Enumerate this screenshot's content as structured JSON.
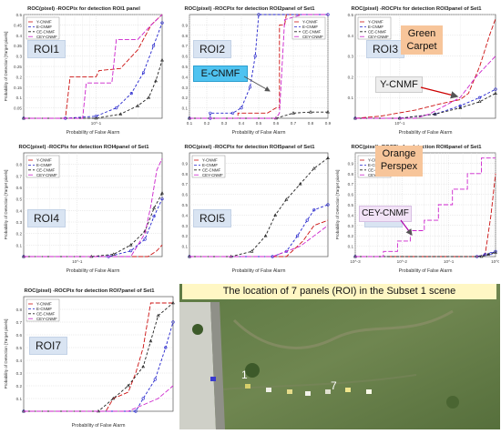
{
  "legend_labels": [
    "Y-CNMF",
    "E-CNMF",
    "CE-CNMF",
    "CEY-CNMF"
  ],
  "series_colors": [
    "#cc1111",
    "#2222cc",
    "#222222",
    "#cc22cc"
  ],
  "callouts": {
    "ecnmf": "E-CNMF",
    "green_carpet": "Green\nCarpet",
    "ycnmf": "Y-CNMF",
    "orange_perspex": "Orange\nPerspex",
    "ceycnmf": "CEY-CNMF"
  },
  "photo": {
    "title": "The location of 7 panels (ROI) in the Subset 1 scene",
    "label1": "1",
    "label7": "7"
  },
  "chart_data": [
    {
      "type": "line",
      "roi": "ROI1",
      "title": "ROC(pixel) -ROCPix for detection ROI1 panel",
      "xlabel": "Probability of False Alarm",
      "ylabel": "Probability of Detection [Target pixels]",
      "xscale": "log",
      "xlim": [
        0.03,
        0.3
      ],
      "ylim": [
        0,
        0.5
      ],
      "yticks": [
        0.05,
        0.1,
        0.15,
        0.2,
        0.25,
        0.3,
        0.35,
        0.4,
        0.45,
        0.5
      ],
      "xticks": [
        0.1
      ],
      "xtick_labels": [
        "10^-1"
      ],
      "legend": "top-left",
      "grid": true,
      "series": [
        {
          "name": "Y-CNMF",
          "x": [
            0.03,
            0.06,
            0.065,
            0.1,
            0.105,
            0.15,
            0.2,
            0.25,
            0.3
          ],
          "y": [
            0.0,
            0.0,
            0.2,
            0.2,
            0.23,
            0.24,
            0.33,
            0.45,
            0.5
          ]
        },
        {
          "name": "E-CNMF",
          "x": [
            0.03,
            0.06,
            0.1,
            0.14,
            0.18,
            0.22,
            0.26,
            0.3
          ],
          "y": [
            0.0,
            0.0,
            0.01,
            0.05,
            0.12,
            0.22,
            0.35,
            0.46
          ]
        },
        {
          "name": "CE-CNMF",
          "x": [
            0.03,
            0.1,
            0.15,
            0.2,
            0.24,
            0.27,
            0.3
          ],
          "y": [
            0.0,
            0.0,
            0.02,
            0.06,
            0.1,
            0.18,
            0.28
          ]
        },
        {
          "name": "CEY-CNMF",
          "x": [
            0.03,
            0.08,
            0.085,
            0.13,
            0.14,
            0.2,
            0.25,
            0.3
          ],
          "y": [
            0.0,
            0.0,
            0.17,
            0.17,
            0.38,
            0.38,
            0.45,
            0.5
          ]
        }
      ]
    },
    {
      "type": "line",
      "roi": "ROI2",
      "title": "ROC(pixel) -ROCPix for detection ROI2panel of Set1",
      "xlabel": "Probability of False Alarm",
      "ylabel": "",
      "xscale": "linear",
      "xlim": [
        0.1,
        0.9
      ],
      "ylim": [
        0,
        1.0
      ],
      "yticks": [
        0.1,
        0.2,
        0.3,
        0.4,
        0.5,
        0.6,
        0.7,
        0.8,
        0.9
      ],
      "xticks": [
        0.1,
        0.2,
        0.3,
        0.4,
        0.5,
        0.6,
        0.7,
        0.8,
        0.9
      ],
      "xtick_labels": [
        "0.1",
        "0.2",
        "0.3",
        "0.4",
        "0.5",
        "0.6",
        "0.7",
        "0.8",
        "0.9"
      ],
      "legend": "top-right",
      "grid": true,
      "series": [
        {
          "name": "Y-CNMF",
          "x": [
            0.1,
            0.38,
            0.38,
            0.55,
            0.6,
            0.62,
            0.62,
            0.65,
            0.66,
            0.9
          ],
          "y": [
            0.0,
            0.0,
            0.05,
            0.05,
            0.1,
            0.1,
            0.9,
            0.9,
            1.0,
            1.0
          ]
        },
        {
          "name": "E-CNMF",
          "x": [
            0.1,
            0.22,
            0.22,
            0.35,
            0.4,
            0.45,
            0.48,
            0.5,
            0.9
          ],
          "y": [
            0.0,
            0.0,
            0.05,
            0.05,
            0.1,
            0.3,
            0.6,
            1.0,
            1.0
          ]
        },
        {
          "name": "CE-CNMF",
          "x": [
            0.1,
            0.6,
            0.7,
            0.8,
            0.9
          ],
          "y": [
            0.0,
            0.0,
            0.05,
            0.06,
            0.06
          ]
        },
        {
          "name": "CEY-CNMF",
          "x": [
            0.1,
            0.6,
            0.62,
            0.65,
            0.75,
            0.9
          ],
          "y": [
            0.0,
            0.0,
            0.05,
            0.95,
            1.0,
            1.0
          ]
        }
      ]
    },
    {
      "type": "line",
      "roi": "ROI3",
      "title": "ROC(pixel) -ROCPix for detection ROI3panel of Set1",
      "xlabel": "Probability of False Alarm",
      "ylabel": "",
      "xscale": "log",
      "xlim": [
        0.06,
        0.3
      ],
      "ylim": [
        0,
        0.5
      ],
      "yticks": [
        0.1,
        0.2,
        0.3,
        0.4,
        0.5
      ],
      "xticks": [
        0.1
      ],
      "xtick_labels": [
        "10^-1"
      ],
      "legend": "top-left",
      "grid": true,
      "series": [
        {
          "name": "Y-CNMF",
          "x": [
            0.06,
            0.08,
            0.12,
            0.16,
            0.2,
            0.22,
            0.25,
            0.28,
            0.3
          ],
          "y": [
            0.0,
            0.01,
            0.04,
            0.07,
            0.09,
            0.12,
            0.25,
            0.4,
            0.48
          ]
        },
        {
          "name": "E-CNMF",
          "x": [
            0.06,
            0.1,
            0.15,
            0.2,
            0.25,
            0.3
          ],
          "y": [
            0.0,
            0.0,
            0.02,
            0.06,
            0.1,
            0.14
          ]
        },
        {
          "name": "CE-CNMF",
          "x": [
            0.06,
            0.1,
            0.15,
            0.2,
            0.25,
            0.3
          ],
          "y": [
            0.0,
            0.0,
            0.02,
            0.05,
            0.08,
            0.12
          ]
        },
        {
          "name": "CEY-CNMF",
          "x": [
            0.06,
            0.12,
            0.14,
            0.2,
            0.24,
            0.3
          ],
          "y": [
            0.0,
            0.0,
            0.02,
            0.1,
            0.2,
            0.3
          ]
        }
      ]
    },
    {
      "type": "line",
      "roi": "ROI4",
      "title": "ROC(pixel) -ROCPix for detection ROI4panel of Set1",
      "xlabel": "Probability of False Alarm",
      "ylabel": "Probability of Detection [Target pixels]",
      "xscale": "log",
      "xlim": [
        0.05,
        0.3
      ],
      "ylim": [
        0,
        0.9
      ],
      "yticks": [
        0.1,
        0.2,
        0.3,
        0.4,
        0.5,
        0.6,
        0.7,
        0.8
      ],
      "xticks": [
        0.1
      ],
      "xtick_labels": [
        "10^-1"
      ],
      "legend": "top-left",
      "grid": true,
      "series": [
        {
          "name": "Y-CNMF",
          "x": [
            0.05,
            0.25,
            0.28,
            0.3
          ],
          "y": [
            0.0,
            0.0,
            0.05,
            0.1
          ]
        },
        {
          "name": "E-CNMF",
          "x": [
            0.05,
            0.15,
            0.2,
            0.24,
            0.27,
            0.3
          ],
          "y": [
            0.0,
            0.0,
            0.05,
            0.15,
            0.35,
            0.5
          ]
        },
        {
          "name": "CE-CNMF",
          "x": [
            0.05,
            0.12,
            0.16,
            0.2,
            0.24,
            0.27,
            0.3
          ],
          "y": [
            0.0,
            0.0,
            0.02,
            0.1,
            0.22,
            0.42,
            0.55
          ]
        },
        {
          "name": "CEY-CNMF",
          "x": [
            0.05,
            0.2,
            0.24,
            0.26,
            0.28,
            0.3
          ],
          "y": [
            0.0,
            0.0,
            0.2,
            0.45,
            0.75,
            0.85
          ]
        }
      ]
    },
    {
      "type": "line",
      "roi": "ROI5",
      "title": "ROC(pixel) -ROCPix for detection ROI5panel of Set1",
      "xlabel": "Probability of False Alarm",
      "ylabel": "",
      "xscale": "linear",
      "xlim": [
        0,
        1
      ],
      "ylim": [
        0,
        1.0
      ],
      "yticks": [
        0.1,
        0.2,
        0.3,
        0.4,
        0.5,
        0.6,
        0.7,
        0.8,
        0.9
      ],
      "xticks": [],
      "xtick_labels": [],
      "legend": "top-left",
      "grid": true,
      "series": [
        {
          "name": "Y-CNMF",
          "x": [
            0.0,
            0.7,
            0.78,
            0.82,
            0.9,
            1.0
          ],
          "y": [
            0.0,
            0.0,
            0.1,
            0.15,
            0.3,
            0.35
          ]
        },
        {
          "name": "E-CNMF",
          "x": [
            0.0,
            0.6,
            0.7,
            0.78,
            0.85,
            0.9,
            1.0
          ],
          "y": [
            0.0,
            0.0,
            0.05,
            0.2,
            0.35,
            0.45,
            0.5
          ]
        },
        {
          "name": "CE-CNMF",
          "x": [
            0.0,
            0.3,
            0.45,
            0.55,
            0.62,
            0.7,
            0.8,
            0.9,
            1.0
          ],
          "y": [
            0.0,
            0.0,
            0.05,
            0.2,
            0.4,
            0.55,
            0.7,
            0.85,
            0.95
          ]
        },
        {
          "name": "CEY-CNMF",
          "x": [
            0.0,
            0.6,
            0.7,
            0.8,
            0.9,
            1.0
          ],
          "y": [
            0.0,
            0.0,
            0.05,
            0.1,
            0.2,
            0.3
          ]
        }
      ]
    },
    {
      "type": "line",
      "roi": "ROI6",
      "title": "ROC(pixel) -ROCPix for detection ROI6panel of Set1",
      "xlabel": "Probability of False Alarm",
      "ylabel": "Probability of Detection [Target pixels]",
      "xscale": "log",
      "xlim": [
        0.001,
        1
      ],
      "ylim": [
        0,
        1.0
      ],
      "yticks": [
        0.1,
        0.2,
        0.3,
        0.4,
        0.5,
        0.6,
        0.7,
        0.8,
        0.9
      ],
      "xticks": [
        0.001,
        0.01,
        0.1,
        1
      ],
      "xtick_labels": [
        "10^-3",
        "10^-2",
        "10^-1",
        "10^0"
      ],
      "legend": "top-left",
      "grid": true,
      "series": [
        {
          "name": "Y-CNMF",
          "x": [
            0.001,
            0.4,
            0.6,
            0.8,
            1.0
          ],
          "y": [
            0.0,
            0.0,
            0.02,
            0.4,
            0.8
          ]
        },
        {
          "name": "E-CNMF",
          "x": [
            0.001,
            0.4,
            0.6,
            0.8,
            1.0
          ],
          "y": [
            0.0,
            0.0,
            0.02,
            0.03,
            0.05
          ]
        },
        {
          "name": "CE-CNMF",
          "x": [
            0.001,
            0.5,
            0.7,
            1.0
          ],
          "y": [
            0.0,
            0.0,
            0.02,
            0.04
          ]
        },
        {
          "name": "CEY-CNMF",
          "x": [
            0.001,
            0.004,
            0.004,
            0.008,
            0.008,
            0.015,
            0.015,
            0.03,
            0.03,
            0.06,
            0.06,
            0.12,
            0.12,
            0.25,
            0.25,
            0.5,
            0.5,
            1.0
          ],
          "y": [
            0.0,
            0.0,
            0.05,
            0.05,
            0.15,
            0.15,
            0.25,
            0.25,
            0.35,
            0.35,
            0.5,
            0.5,
            0.65,
            0.65,
            0.8,
            0.8,
            0.95,
            0.95
          ]
        }
      ]
    },
    {
      "type": "line",
      "roi": "ROI7",
      "title": "ROC(pixel) -ROCPix for detection ROI7panel of Set1",
      "xlabel": "Probability of False Alarm",
      "ylabel": "Probability of Detection [Target pixels]",
      "xscale": "linear",
      "xlim": [
        0,
        1
      ],
      "ylim": [
        0,
        0.9
      ],
      "yticks": [
        0.1,
        0.2,
        0.3,
        0.4,
        0.5,
        0.6,
        0.7,
        0.8
      ],
      "xticks": [],
      "xtick_labels": [],
      "legend": "top-left",
      "grid": true,
      "series": [
        {
          "name": "Y-CNMF",
          "x": [
            0.0,
            0.55,
            0.6,
            0.7,
            0.75,
            0.8,
            0.85,
            1.0
          ],
          "y": [
            0.0,
            0.0,
            0.1,
            0.15,
            0.3,
            0.5,
            0.85,
            0.85
          ]
        },
        {
          "name": "E-CNMF",
          "x": [
            0.0,
            0.75,
            0.8,
            0.88,
            0.95,
            1.0
          ],
          "y": [
            0.0,
            0.0,
            0.1,
            0.25,
            0.5,
            0.7
          ]
        },
        {
          "name": "CE-CNMF",
          "x": [
            0.0,
            0.5,
            0.6,
            0.7,
            0.8,
            0.85,
            0.9,
            1.0
          ],
          "y": [
            0.0,
            0.0,
            0.1,
            0.2,
            0.35,
            0.55,
            0.75,
            0.85
          ]
        },
        {
          "name": "CEY-CNMF",
          "x": [
            0.0,
            0.7,
            0.8,
            0.9,
            1.0
          ],
          "y": [
            0.0,
            0.0,
            0.05,
            0.1,
            0.2
          ]
        }
      ]
    }
  ]
}
